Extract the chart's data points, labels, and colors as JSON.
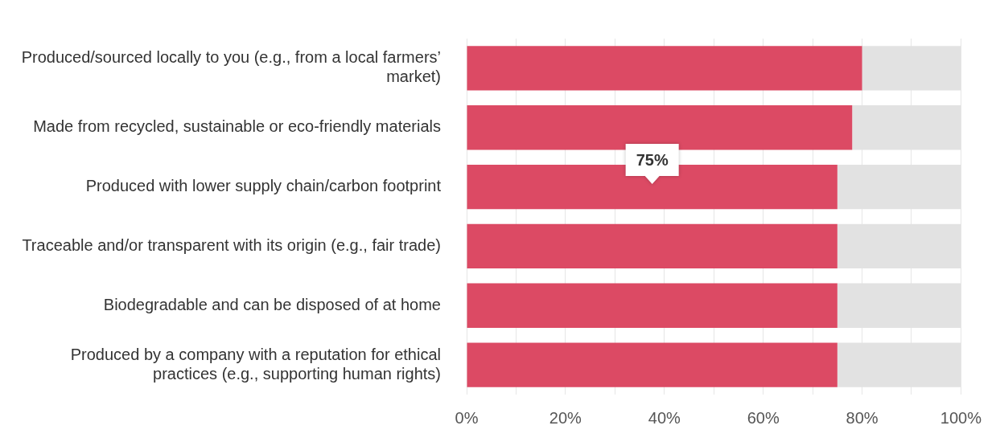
{
  "chart_data": {
    "type": "bar",
    "orientation": "horizontal",
    "stacked": true,
    "categories": [
      "Produced/sourced locally to you (e.g., from a local farmers’ market)",
      "Made from recycled, sustainable or eco-friendly materials",
      "Produced with lower supply chain/carbon footprint",
      "Traceable and/or transparent with its origin (e.g., fair trade)",
      "Biodegradable and can be disposed of at home",
      "Produced by a company with a reputation for ethical practices (e.g., supporting human rights)"
    ],
    "series": [
      {
        "color": "#dc4a64",
        "values": [
          80,
          78,
          75,
          75,
          75,
          75
        ],
        "value_labels": [
          null,
          null,
          "75%",
          null,
          null,
          null
        ]
      },
      {
        "color": "#e2e2e2",
        "values": [
          20,
          22,
          25,
          25,
          25,
          25
        ]
      }
    ],
    "xlim": [
      0,
      100
    ],
    "xticks": [
      {
        "value": 0,
        "label": "0%"
      },
      {
        "value": 10,
        "label": null
      },
      {
        "value": 20,
        "label": "20%"
      },
      {
        "value": 30,
        "label": null
      },
      {
        "value": 40,
        "label": "40%"
      },
      {
        "value": 50,
        "label": null
      },
      {
        "value": 60,
        "label": "60%"
      },
      {
        "value": 70,
        "label": null
      },
      {
        "value": 80,
        "label": "80%"
      },
      {
        "value": 90,
        "label": null
      },
      {
        "value": 100,
        "label": "100%"
      }
    ],
    "grid": "x",
    "legend": false
  }
}
